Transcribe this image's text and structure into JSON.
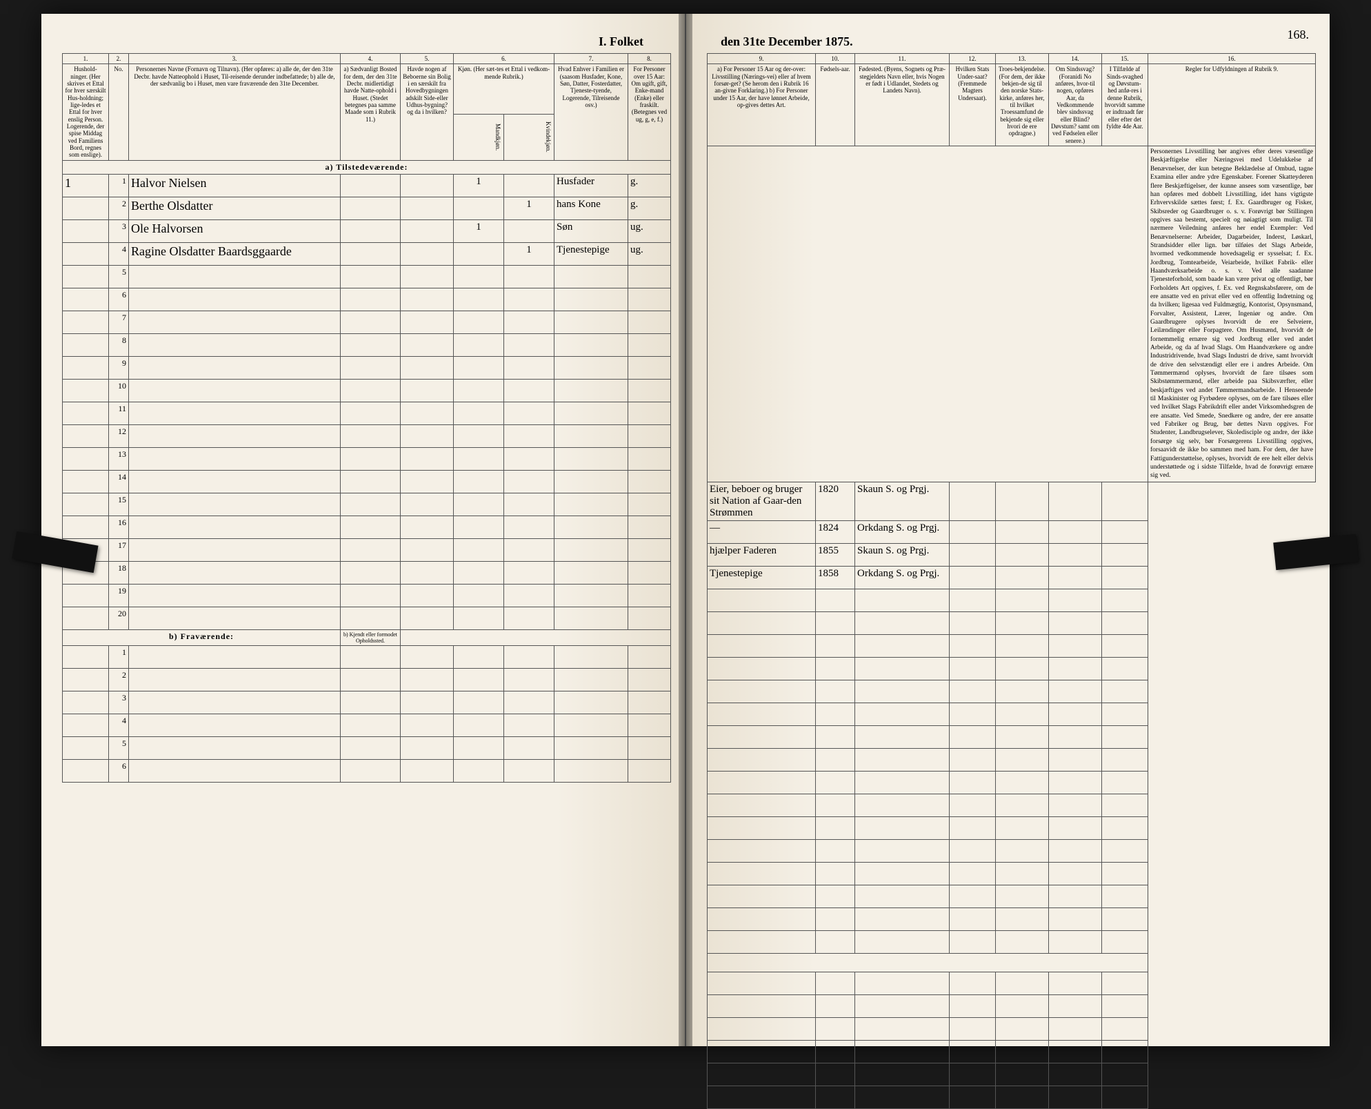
{
  "header": {
    "title_left": "I. Folket",
    "title_right": "den 31te December 1875.",
    "page_number": "168."
  },
  "columns_left": {
    "c1": "1.",
    "c2": "2.",
    "c3": "3.",
    "c4": "4.",
    "c5": "5.",
    "c6": "6.",
    "c7": "7.",
    "c8": "8.",
    "h1": "Hushold-\nninger.\n(Her skrives et Ettal for hver særskilt Hus-holdning; lige-ledes et Ettal for hver enslig Person.\nLogerende, der spise Middag ved Familiens Bord, regnes som enslige).",
    "h2": "No.",
    "h3": "Personernes Navne (Fornavn og Tilnavn).\n(Her opføres:\na) alle de, der den 31te Decbr. havde Natteophold i Huset, Til-reisende derunder indbefattede;\nb) alle de, der sædvanlig bo i Huset, men vare fraværende den 31te December.",
    "h4": "a) Sædvanligt Bosted for dem, der den 31te Decbr. midlertidigt havde Natte-ophold i Huset. (Stedet betegnes paa samme Maade som i Rubrik 11.)",
    "h5": "Havde nogen af Beboerne sin Bolig i en særskilt fra Hovedbygningen adskilt Side-eller Udhus-bygning? og da i hvilken?",
    "h6": "Kjøn.\n(Her sæt-tes et Ettal i vedkom-mende Rubrik.)",
    "h6a": "Mandkjøn.",
    "h6b": "Kvindekjøn.",
    "h7": "Hvad Enhver i Familien er (saasom Husfader, Kone, Søn, Datter, Fosterdatter, Tjeneste-tyende, Logerende, Tilreisende osv.)",
    "h8": "For Personer over 15 Aar: Om ugift, gift, Enke-mand (Enke) eller fraskilt. (Betegnes ved ug, g, e, f.)"
  },
  "columns_right": {
    "c9": "9.",
    "c10": "10.",
    "c11": "11.",
    "c12": "12.",
    "c13": "13.",
    "c14": "14.",
    "c15": "15.",
    "c16": "16.",
    "h9": "a) For Personer 15 Aar og der-over: Livsstilling (Nærings-vei) eller af hvem forsør-get? (Se herom den i Rubrik 16 an-givne Forklaring.)\nb) For Personer under 15 Aar, der have lønnet Arbeide, op-gives dettes Art.",
    "h10": "Fødsels-aar.",
    "h11": "Fødested.\n(Byens, Sognets og Præ-stegjeldets Navn eller, hvis Nogen er født i Udlandet, Stedets og Landets Navn).",
    "h12": "Hvilken Stats Under-saat?\n(Fremmede Magters Undersaat).",
    "h13": "Troes-bekjendelse.\n(For dem, der ikke bekjen-de sig til den norske Stats-kirke, anføres her, til hvilket Troessamfund de bekjende sig eller hvori de ere opdragne.)",
    "h14": "Om Sindssvag?\n(Foranidi No anføres, hvor-til nogen, opføres Aar, da Vedkommende blev sindssvag eller Blind?\nDøvstum? samt om ved Fødselen eller senere.)",
    "h15": "I Tilfælde af Sinds-svaghed og Døvstum-hed anfø-res i denne Rubrik, hvorvidt samme er indtraadt før eller efter det fyldte 4de Aar.",
    "h16": "Regler for Udfyldningen af Rubrik 9."
  },
  "sections": {
    "tilstede": "a) Tilstedeværende:",
    "fravar": "b) Fraværende:",
    "fravar_col4": "b) Kjendt eller formodet Opholdssted."
  },
  "rows": [
    {
      "hh": "1",
      "n": "1",
      "name": "Halvor Nielsen",
      "c4": "",
      "c5": "",
      "mk": "1",
      "kk": "",
      "rel": "Husfader",
      "civ": "g.",
      "occ": "Eier, beboer og bruger sit Nation af Gaar-den Strømmen",
      "yr": "1820",
      "place": "Skaun S. og Prgj."
    },
    {
      "hh": "",
      "n": "2",
      "name": "Berthe Olsdatter",
      "c4": "",
      "c5": "",
      "mk": "",
      "kk": "1",
      "rel": "hans Kone",
      "civ": "g.",
      "occ": "—",
      "yr": "1824",
      "place": "Orkdang S. og Prgj."
    },
    {
      "hh": "",
      "n": "3",
      "name": "Ole Halvorsen",
      "c4": "",
      "c5": "",
      "mk": "1",
      "kk": "",
      "rel": "Søn",
      "civ": "ug.",
      "occ": "hjælper Faderen",
      "yr": "1855",
      "place": "Skaun S. og Prgj."
    },
    {
      "hh": "",
      "n": "4",
      "name": "Ragine Olsdatter Baardsggaarde",
      "c4": "",
      "c5": "",
      "mk": "",
      "kk": "1",
      "rel": "Tjenestepige",
      "civ": "ug.",
      "occ": "Tjenestepige",
      "yr": "1858",
      "place": "Orkdang S. og Prgj."
    }
  ],
  "blank_rows_a": [
    5,
    6,
    7,
    8,
    9,
    10,
    11,
    12,
    13,
    14,
    15,
    16,
    17,
    18,
    19,
    20
  ],
  "blank_rows_b": [
    1,
    2,
    3,
    4,
    5,
    6
  ],
  "instructions_text": "Personernes Livsstilling bør angives efter deres væsentlige Beskjæftigelse eller Næringsvei med Udelukkelse af Benævnelser, der kun betegne Beklædelse af Ombud, tagne Examina eller andre ydre Egenskaber. Forener Skatteyderen flere Beskjæftigelser, der kunne ansees som væsentlige, bør han opføres med dobbelt Livsstilling, idet hans vigtigste Erhvervskilde sættes først; f. Ex. Gaardbruger og Fisker, Skibsreder og Gaardbruger o. s. v. Forøvrigt bør Stillingen opgives saa bestemt, specielt og nøiagtigt som muligt.\nTil nærmere Veiledning anføres her endel Exempler:\nVed Benævnelserne: Arbeider, Dagarbeider, Inderst, Løskarl, Strandsidder eller lign. bør tilføies det Slags Arbeide, hvormed vedkommende hovedsagelig er sysselsat; f. Ex. Jordbrug, Tomtearbeide, Veiarbeide, hvilket Fabrik- eller Haandværksarbeide o. s. v.\nVed alle saadanne Tjenesteforhold, som baade kan være privat og offentligt, bør Forholdets Art opgives, f. Ex. ved Regnskabsførere, om de ere ansatte ved en privat eller ved en offentlig Indretning og da hvilken; ligesaa ved Fuldmægtig, Kontorist, Opsynsmand, Forvalter, Assistent, Lærer, Ingeniør og andre.\nOm Gaardbrugere oplyses hvorvidt de ere Selveiere, Leilændinger eller Forpagtere.\nOm Husmænd, hvorvidt de fornemmelig ernære sig ved Jordbrug eller ved andet Arbeide, og da af hvad Slags.\nOm Haandværkere og andre Industridrivende, hvad Slags Industri de drive, samt hvorvidt de drive den selvstændigt eller ere i andres Arbeide.\nOm Tømmermænd oplyses, hvorvidt de fare tilsøes som Skibstømmermænd, eller arbeide paa Skibsværfter, eller beskjæftiges ved andet Tømmermandsarbeide.\nI Henseende til Maskinister og Fyrbødere oplyses, om de fare tilsøes eller ved hvilket Slags Fabrikdrift eller andet Virksomhedsgren de ere ansatte.\nVed Smede, Snedkere og andre, der ere ansatte ved Fabriker og Brug, bør dettes Navn opgives.\nFor Studenter, Landbrugselever, Skoledisciple og andre, der ikke forsørge sig selv, bør Forsørgerens Livsstilling opgives, forsaavidt de ikke bo sammen med ham.\nFor dem, der have Fattigunderstøttelse, oplyses, hvorvidt de ere helt eller delvis understøttede og i sidste Tilfælde, hvad de forøvrigt ernære sig ved."
}
